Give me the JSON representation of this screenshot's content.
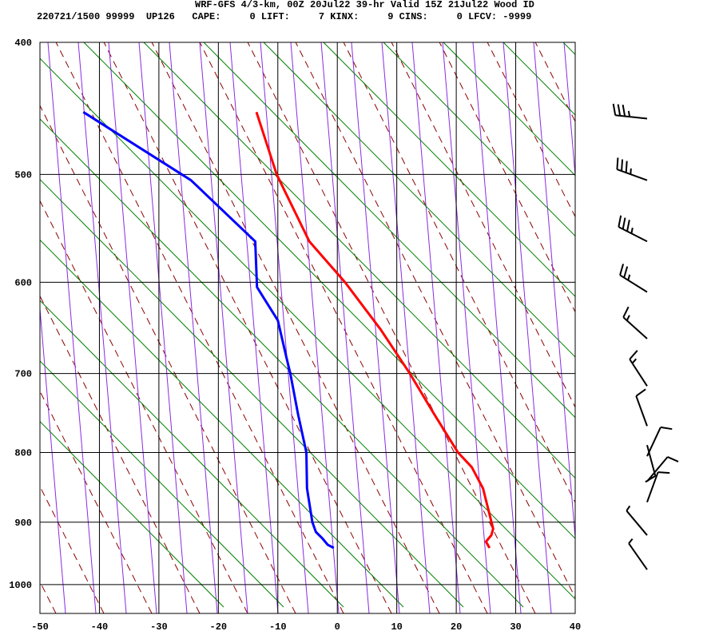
{
  "header": {
    "line1": "WRF-GFS 4/3-km, 00Z 20Jul22 39-hr Valid 15Z 21Jul22 Wood ID",
    "line2": "220721/1500 99999  UP126   CAPE:     0 LIFT:     7 KINX:     9 CINS:     0 LFCV: -9999"
  },
  "colors": {
    "temperature": "#ff0000",
    "dewpoint": "#0000ff",
    "isotherm_grid": "#000000",
    "dry_adiabat": "#8b0000",
    "moist_adiabat": "#8a2be2",
    "mixing_ratio": "#008000",
    "wind_barb": "#000000"
  },
  "chart_data": {
    "type": "skew-t",
    "title": "",
    "xlabel": "",
    "ylabel": "",
    "xlim": [
      -50,
      40
    ],
    "ylim": [
      1050,
      400
    ],
    "x_ticks": [
      -50,
      -40,
      -30,
      -20,
      -10,
      0,
      10,
      20,
      30,
      40
    ],
    "x_tick_labels": [
      "-50",
      "-40",
      "-30",
      "-20",
      "-10",
      "0",
      "10",
      "20",
      "30",
      "40"
    ],
    "y_ticks": [
      400,
      500,
      600,
      700,
      800,
      900,
      1000
    ],
    "y_tick_labels": [
      "400",
      "500",
      "600",
      "700",
      "800",
      "900",
      "1000"
    ],
    "grid": true,
    "series": [
      {
        "key": "temperature",
        "points": [
          {
            "p": 940,
            "t": 25.6
          },
          {
            "p": 930,
            "t": 25.0
          },
          {
            "p": 920,
            "t": 25.9
          },
          {
            "p": 910,
            "t": 26.2
          },
          {
            "p": 885,
            "t": 25.5
          },
          {
            "p": 850,
            "t": 24.5
          },
          {
            "p": 820,
            "t": 22.6
          },
          {
            "p": 800,
            "t": 20.3
          },
          {
            "p": 750,
            "t": 16.3
          },
          {
            "p": 700,
            "t": 12.2
          },
          {
            "p": 650,
            "t": 7.3
          },
          {
            "p": 600,
            "t": 1.3
          },
          {
            "p": 560,
            "t": -4.7
          },
          {
            "p": 500,
            "t": -10.2
          },
          {
            "p": 450,
            "t": -13.6
          }
        ]
      },
      {
        "key": "dewpoint",
        "points": [
          {
            "p": 940,
            "t": -0.6
          },
          {
            "p": 935,
            "t": -1.6
          },
          {
            "p": 925,
            "t": -2.5
          },
          {
            "p": 915,
            "t": -3.6
          },
          {
            "p": 900,
            "t": -4.2
          },
          {
            "p": 850,
            "t": -5.1
          },
          {
            "p": 800,
            "t": -5.2
          },
          {
            "p": 750,
            "t": -6.6
          },
          {
            "p": 700,
            "t": -7.9
          },
          {
            "p": 680,
            "t": -8.6
          },
          {
            "p": 640,
            "t": -10.0
          },
          {
            "p": 605,
            "t": -13.5
          },
          {
            "p": 560,
            "t": -13.8
          },
          {
            "p": 505,
            "t": -24.6
          },
          {
            "p": 450,
            "t": -42.7
          }
        ]
      }
    ],
    "wind_barbs": [
      {
        "p": 455,
        "dir": 276,
        "speed": 35
      },
      {
        "p": 505,
        "dir": 290,
        "speed": 35
      },
      {
        "p": 560,
        "dir": 297,
        "speed": 35
      },
      {
        "p": 610,
        "dir": 302,
        "speed": 25
      },
      {
        "p": 660,
        "dir": 312,
        "speed": 15
      },
      {
        "p": 715,
        "dir": 327,
        "speed": 15
      },
      {
        "p": 765,
        "dir": 340,
        "speed": 10
      },
      {
        "p": 790,
        "dir": 165,
        "speed": 10
      },
      {
        "p": 805,
        "dir": 25,
        "speed": 10
      },
      {
        "p": 840,
        "dir": 40,
        "speed": 10
      },
      {
        "p": 870,
        "dir": 20,
        "speed": 10
      },
      {
        "p": 920,
        "dir": 320,
        "speed": 5
      },
      {
        "p": 975,
        "dir": 325,
        "speed": 5
      }
    ]
  }
}
